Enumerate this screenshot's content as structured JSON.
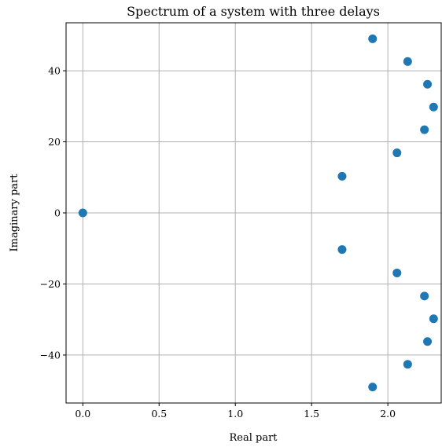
{
  "chart_data": {
    "type": "scatter",
    "title": "Spectrum of a system with three delays",
    "xlabel": "Real part",
    "ylabel": "Imaginary part",
    "xlim": [
      -0.11,
      2.35
    ],
    "ylim": [
      -53.5,
      53.5
    ],
    "xticks": [
      0.0,
      0.5,
      1.0,
      1.5,
      2.0
    ],
    "xtick_labels": [
      "0.0",
      "0.5",
      "1.0",
      "1.5",
      "2.0"
    ],
    "yticks": [
      -40,
      -20,
      0,
      20,
      40
    ],
    "ytick_labels": [
      "−40",
      "−20",
      "0",
      "20",
      "40"
    ],
    "grid": true,
    "marker_color": "#1f77b4",
    "series": [
      {
        "points": [
          {
            "x": 0.0,
            "y": 0.0
          },
          {
            "x": 1.7,
            "y": 10.3
          },
          {
            "x": 1.7,
            "y": -10.3
          },
          {
            "x": 2.06,
            "y": 16.9
          },
          {
            "x": 2.06,
            "y": -16.9
          },
          {
            "x": 2.24,
            "y": 23.4
          },
          {
            "x": 2.24,
            "y": -23.4
          },
          {
            "x": 2.3,
            "y": 29.8
          },
          {
            "x": 2.3,
            "y": -29.8
          },
          {
            "x": 2.26,
            "y": 36.2
          },
          {
            "x": 2.26,
            "y": -36.2
          },
          {
            "x": 2.13,
            "y": 42.6
          },
          {
            "x": 2.13,
            "y": -42.6
          },
          {
            "x": 1.9,
            "y": 49.0
          },
          {
            "x": 1.9,
            "y": -49.0
          }
        ]
      }
    ]
  }
}
